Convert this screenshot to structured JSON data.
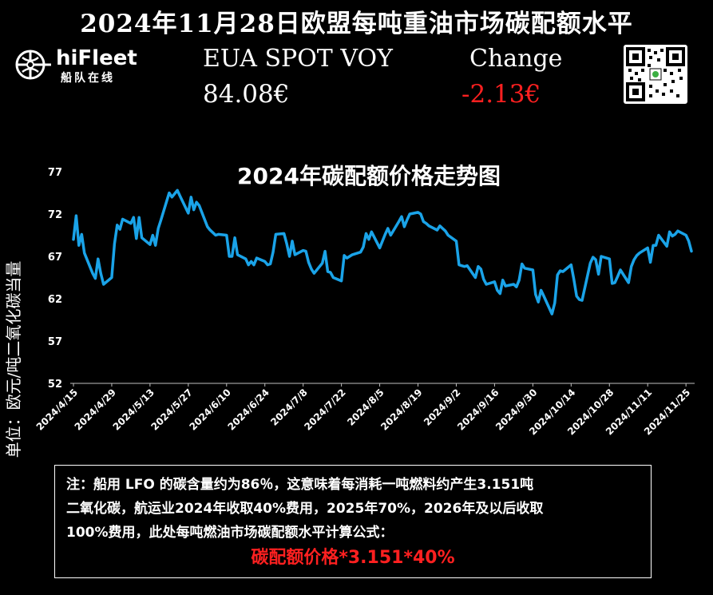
{
  "header": {
    "title": "2024年11月28日欧盟每吨重油市场碳配额水平"
  },
  "logo": {
    "name": "hiFleet",
    "subtitle": "船队在线"
  },
  "price": {
    "label": "EUA SPOT VOY",
    "value": "84.08€"
  },
  "change": {
    "label": "Change",
    "value": "-2.13€"
  },
  "colors": {
    "line": "#1aa3e8",
    "negative": "#ff2020",
    "background": "#000000",
    "text": "#ffffff"
  },
  "icons": {
    "logo": "globe-ship-icon",
    "qr": "qr-code-icon"
  },
  "chart_data": {
    "type": "line",
    "title": "2024年碳配额价格走势图",
    "ylabel": "单位：欧元/吨二氧化碳当量",
    "xlabel": "",
    "ylim": [
      52,
      77
    ],
    "yticks": [
      52,
      57,
      62,
      67,
      72,
      77
    ],
    "grid": false,
    "legend": "none",
    "x_tick_labels": [
      "2024/4/15",
      "2024/4/29",
      "2024/5/13",
      "2024/5/27",
      "2024/6/10",
      "2024/6/24",
      "2024/7/8",
      "2024/7/22",
      "2024/8/5",
      "2024/8/19",
      "2024/9/2",
      "2024/9/16",
      "2024/9/30",
      "2024/10/14",
      "2024/10/28",
      "2024/11/11",
      "2024/11/25"
    ],
    "series": [
      {
        "values": [
          {
            "x": "2024/4/15",
            "y": 69.0
          },
          {
            "x": "2024/4/16",
            "y": 71.8
          },
          {
            "x": "2024/4/17",
            "y": 68.3
          },
          {
            "x": "2024/4/18",
            "y": 69.6
          },
          {
            "x": "2024/4/19",
            "y": 67.4
          },
          {
            "x": "2024/4/22",
            "y": 65.0
          },
          {
            "x": "2024/4/23",
            "y": 64.4
          },
          {
            "x": "2024/4/24",
            "y": 66.7
          },
          {
            "x": "2024/4/25",
            "y": 65.0
          },
          {
            "x": "2024/4/26",
            "y": 63.7
          },
          {
            "x": "2024/4/29",
            "y": 64.5
          },
          {
            "x": "2024/4/30",
            "y": 68.5
          },
          {
            "x": "2024/5/1",
            "y": 70.7
          },
          {
            "x": "2024/5/2",
            "y": 70.2
          },
          {
            "x": "2024/5/3",
            "y": 71.4
          },
          {
            "x": "2024/5/6",
            "y": 70.9
          },
          {
            "x": "2024/5/7",
            "y": 71.6
          },
          {
            "x": "2024/5/8",
            "y": 69.1
          },
          {
            "x": "2024/5/9",
            "y": 71.6
          },
          {
            "x": "2024/5/10",
            "y": 69.2
          },
          {
            "x": "2024/5/13",
            "y": 68.4
          },
          {
            "x": "2024/5/14",
            "y": 69.5
          },
          {
            "x": "2024/5/15",
            "y": 68.3
          },
          {
            "x": "2024/5/16",
            "y": 70.3
          },
          {
            "x": "2024/5/17",
            "y": 71.3
          },
          {
            "x": "2024/5/20",
            "y": 74.5
          },
          {
            "x": "2024/5/21",
            "y": 74.0
          },
          {
            "x": "2024/5/22",
            "y": 74.4
          },
          {
            "x": "2024/5/23",
            "y": 74.8
          },
          {
            "x": "2024/5/24",
            "y": 74.1
          },
          {
            "x": "2024/5/27",
            "y": 72.1
          },
          {
            "x": "2024/5/28",
            "y": 74.0
          },
          {
            "x": "2024/5/29",
            "y": 72.5
          },
          {
            "x": "2024/5/30",
            "y": 73.4
          },
          {
            "x": "2024/5/31",
            "y": 73.0
          },
          {
            "x": "2024/6/3",
            "y": 70.5
          },
          {
            "x": "2024/6/4",
            "y": 70.1
          },
          {
            "x": "2024/6/5",
            "y": 69.8
          },
          {
            "x": "2024/6/6",
            "y": 69.5
          },
          {
            "x": "2024/6/7",
            "y": 69.6
          },
          {
            "x": "2024/6/10",
            "y": 69.5
          },
          {
            "x": "2024/6/11",
            "y": 67.0
          },
          {
            "x": "2024/6/12",
            "y": 67.0
          },
          {
            "x": "2024/6/13",
            "y": 69.2
          },
          {
            "x": "2024/6/14",
            "y": 67.2
          },
          {
            "x": "2024/6/17",
            "y": 66.7
          },
          {
            "x": "2024/6/18",
            "y": 66.0
          },
          {
            "x": "2024/6/19",
            "y": 66.4
          },
          {
            "x": "2024/6/20",
            "y": 66.0
          },
          {
            "x": "2024/6/21",
            "y": 66.8
          },
          {
            "x": "2024/6/24",
            "y": 66.4
          },
          {
            "x": "2024/6/25",
            "y": 66.0
          },
          {
            "x": "2024/6/26",
            "y": 66.1
          },
          {
            "x": "2024/6/27",
            "y": 67.5
          },
          {
            "x": "2024/6/28",
            "y": 69.6
          },
          {
            "x": "2024/7/1",
            "y": 69.7
          },
          {
            "x": "2024/7/2",
            "y": 68.5
          },
          {
            "x": "2024/7/3",
            "y": 67.0
          },
          {
            "x": "2024/7/4",
            "y": 68.8
          },
          {
            "x": "2024/7/5",
            "y": 67.2
          },
          {
            "x": "2024/7/8",
            "y": 67.7
          },
          {
            "x": "2024/7/9",
            "y": 67.6
          },
          {
            "x": "2024/7/10",
            "y": 66.3
          },
          {
            "x": "2024/7/11",
            "y": 65.5
          },
          {
            "x": "2024/7/12",
            "y": 65.0
          },
          {
            "x": "2024/7/15",
            "y": 66.2
          },
          {
            "x": "2024/7/16",
            "y": 67.6
          },
          {
            "x": "2024/7/17",
            "y": 65.2
          },
          {
            "x": "2024/7/18",
            "y": 65.1
          },
          {
            "x": "2024/7/19",
            "y": 64.5
          },
          {
            "x": "2024/7/22",
            "y": 64.1
          },
          {
            "x": "2024/7/23",
            "y": 67.1
          },
          {
            "x": "2024/7/24",
            "y": 66.8
          },
          {
            "x": "2024/7/25",
            "y": 67.0
          },
          {
            "x": "2024/7/26",
            "y": 67.2
          },
          {
            "x": "2024/7/29",
            "y": 67.5
          },
          {
            "x": "2024/7/30",
            "y": 68.1
          },
          {
            "x": "2024/7/31",
            "y": 69.7
          },
          {
            "x": "2024/8/1",
            "y": 69.0
          },
          {
            "x": "2024/8/2",
            "y": 69.9
          },
          {
            "x": "2024/8/5",
            "y": 68.0
          },
          {
            "x": "2024/8/6",
            "y": 68.8
          },
          {
            "x": "2024/8/7",
            "y": 69.6
          },
          {
            "x": "2024/8/8",
            "y": 70.3
          },
          {
            "x": "2024/8/9",
            "y": 69.5
          },
          {
            "x": "2024/8/12",
            "y": 71.1
          },
          {
            "x": "2024/8/13",
            "y": 71.7
          },
          {
            "x": "2024/8/14",
            "y": 70.5
          },
          {
            "x": "2024/8/15",
            "y": 71.3
          },
          {
            "x": "2024/8/16",
            "y": 72.0
          },
          {
            "x": "2024/8/19",
            "y": 72.2
          },
          {
            "x": "2024/8/20",
            "y": 72.0
          },
          {
            "x": "2024/8/21",
            "y": 71.1
          },
          {
            "x": "2024/8/22",
            "y": 70.9
          },
          {
            "x": "2024/8/23",
            "y": 70.6
          },
          {
            "x": "2024/8/26",
            "y": 70.1
          },
          {
            "x": "2024/8/27",
            "y": 70.6
          },
          {
            "x": "2024/8/28",
            "y": 70.3
          },
          {
            "x": "2024/8/29",
            "y": 70.0
          },
          {
            "x": "2024/8/30",
            "y": 69.5
          },
          {
            "x": "2024/9/2",
            "y": 68.8
          },
          {
            "x": "2024/9/3",
            "y": 66.0
          },
          {
            "x": "2024/9/4",
            "y": 65.9
          },
          {
            "x": "2024/9/5",
            "y": 65.8
          },
          {
            "x": "2024/9/6",
            "y": 65.9
          },
          {
            "x": "2024/9/9",
            "y": 64.5
          },
          {
            "x": "2024/9/10",
            "y": 65.8
          },
          {
            "x": "2024/9/11",
            "y": 65.5
          },
          {
            "x": "2024/9/12",
            "y": 64.3
          },
          {
            "x": "2024/9/13",
            "y": 63.7
          },
          {
            "x": "2024/9/16",
            "y": 64.0
          },
          {
            "x": "2024/9/17",
            "y": 63.0
          },
          {
            "x": "2024/9/18",
            "y": 62.6
          },
          {
            "x": "2024/9/19",
            "y": 64.2
          },
          {
            "x": "2024/9/20",
            "y": 63.5
          },
          {
            "x": "2024/9/23",
            "y": 63.7
          },
          {
            "x": "2024/9/24",
            "y": 63.4
          },
          {
            "x": "2024/9/25",
            "y": 64.2
          },
          {
            "x": "2024/9/26",
            "y": 66.1
          },
          {
            "x": "2024/9/27",
            "y": 65.6
          },
          {
            "x": "2024/9/30",
            "y": 65.4
          },
          {
            "x": "2024/10/1",
            "y": 62.5
          },
          {
            "x": "2024/10/2",
            "y": 61.6
          },
          {
            "x": "2024/10/3",
            "y": 63.0
          },
          {
            "x": "2024/10/4",
            "y": 62.3
          },
          {
            "x": "2024/10/7",
            "y": 60.2
          },
          {
            "x": "2024/10/8",
            "y": 61.5
          },
          {
            "x": "2024/10/9",
            "y": 64.8
          },
          {
            "x": "2024/10/10",
            "y": 65.3
          },
          {
            "x": "2024/10/11",
            "y": 65.2
          },
          {
            "x": "2024/10/14",
            "y": 66.0
          },
          {
            "x": "2024/10/15",
            "y": 64.3
          },
          {
            "x": "2024/10/16",
            "y": 62.3
          },
          {
            "x": "2024/10/17",
            "y": 61.9
          },
          {
            "x": "2024/10/18",
            "y": 61.8
          },
          {
            "x": "2024/10/21",
            "y": 66.2
          },
          {
            "x": "2024/10/22",
            "y": 66.9
          },
          {
            "x": "2024/10/23",
            "y": 66.6
          },
          {
            "x": "2024/10/24",
            "y": 64.9
          },
          {
            "x": "2024/10/25",
            "y": 67.0
          },
          {
            "x": "2024/10/28",
            "y": 66.7
          },
          {
            "x": "2024/10/29",
            "y": 63.8
          },
          {
            "x": "2024/10/30",
            "y": 63.9
          },
          {
            "x": "2024/10/31",
            "y": 64.6
          },
          {
            "x": "2024/11/1",
            "y": 65.4
          },
          {
            "x": "2024/11/4",
            "y": 63.9
          },
          {
            "x": "2024/11/5",
            "y": 65.8
          },
          {
            "x": "2024/11/6",
            "y": 66.6
          },
          {
            "x": "2024/11/7",
            "y": 67.1
          },
          {
            "x": "2024/11/8",
            "y": 67.4
          },
          {
            "x": "2024/11/11",
            "y": 68.0
          },
          {
            "x": "2024/11/12",
            "y": 66.3
          },
          {
            "x": "2024/11/13",
            "y": 68.3
          },
          {
            "x": "2024/11/14",
            "y": 68.3
          },
          {
            "x": "2024/11/15",
            "y": 69.5
          },
          {
            "x": "2024/11/18",
            "y": 68.2
          },
          {
            "x": "2024/11/19",
            "y": 69.9
          },
          {
            "x": "2024/11/20",
            "y": 69.4
          },
          {
            "x": "2024/11/21",
            "y": 69.6
          },
          {
            "x": "2024/11/22",
            "y": 70.0
          },
          {
            "x": "2024/11/25",
            "y": 69.5
          },
          {
            "x": "2024/11/26",
            "y": 68.8
          },
          {
            "x": "2024/11/27",
            "y": 67.6
          }
        ]
      }
    ]
  },
  "note": {
    "lines": [
      "注：船用 LFO 的碳含量约为86％，这意味着每消耗一吨燃料约产生3.151吨",
      "二氧化碳，航运业2024年收取40%费用，2025年70%，2026年及以后收取",
      "100%费用，此处每吨燃油市场碳配额水平计算公式："
    ],
    "formula": "碳配额价格*3.151*40%"
  }
}
